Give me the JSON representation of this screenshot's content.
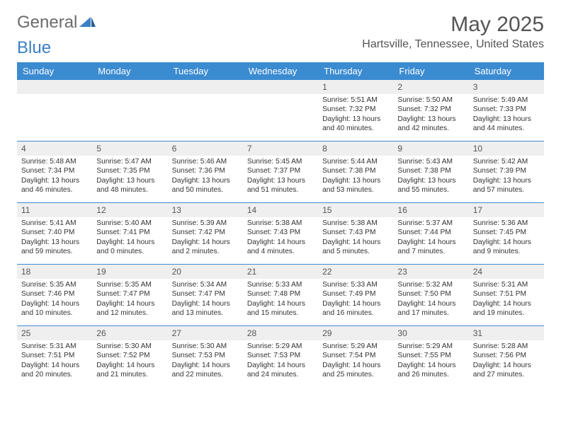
{
  "brand": {
    "part1": "General",
    "part2": "Blue"
  },
  "title": "May 2025",
  "subtitle": "Hartsville, Tennessee, United States",
  "colors": {
    "header_bg": "#3b8bd1",
    "header_text": "#ffffff",
    "daynum_bg": "#efefef",
    "border": "#3b8bd1",
    "text": "#333333",
    "brand_gray": "#6b6b6b",
    "brand_blue": "#3b7fc4"
  },
  "dayNames": [
    "Sunday",
    "Monday",
    "Tuesday",
    "Wednesday",
    "Thursday",
    "Friday",
    "Saturday"
  ],
  "weeks": [
    [
      {
        "num": "",
        "lines": []
      },
      {
        "num": "",
        "lines": []
      },
      {
        "num": "",
        "lines": []
      },
      {
        "num": "",
        "lines": []
      },
      {
        "num": "1",
        "lines": [
          "Sunrise: 5:51 AM",
          "Sunset: 7:32 PM",
          "Daylight: 13 hours",
          "and 40 minutes."
        ]
      },
      {
        "num": "2",
        "lines": [
          "Sunrise: 5:50 AM",
          "Sunset: 7:32 PM",
          "Daylight: 13 hours",
          "and 42 minutes."
        ]
      },
      {
        "num": "3",
        "lines": [
          "Sunrise: 5:49 AM",
          "Sunset: 7:33 PM",
          "Daylight: 13 hours",
          "and 44 minutes."
        ]
      }
    ],
    [
      {
        "num": "4",
        "lines": [
          "Sunrise: 5:48 AM",
          "Sunset: 7:34 PM",
          "Daylight: 13 hours",
          "and 46 minutes."
        ]
      },
      {
        "num": "5",
        "lines": [
          "Sunrise: 5:47 AM",
          "Sunset: 7:35 PM",
          "Daylight: 13 hours",
          "and 48 minutes."
        ]
      },
      {
        "num": "6",
        "lines": [
          "Sunrise: 5:46 AM",
          "Sunset: 7:36 PM",
          "Daylight: 13 hours",
          "and 50 minutes."
        ]
      },
      {
        "num": "7",
        "lines": [
          "Sunrise: 5:45 AM",
          "Sunset: 7:37 PM",
          "Daylight: 13 hours",
          "and 51 minutes."
        ]
      },
      {
        "num": "8",
        "lines": [
          "Sunrise: 5:44 AM",
          "Sunset: 7:38 PM",
          "Daylight: 13 hours",
          "and 53 minutes."
        ]
      },
      {
        "num": "9",
        "lines": [
          "Sunrise: 5:43 AM",
          "Sunset: 7:38 PM",
          "Daylight: 13 hours",
          "and 55 minutes."
        ]
      },
      {
        "num": "10",
        "lines": [
          "Sunrise: 5:42 AM",
          "Sunset: 7:39 PM",
          "Daylight: 13 hours",
          "and 57 minutes."
        ]
      }
    ],
    [
      {
        "num": "11",
        "lines": [
          "Sunrise: 5:41 AM",
          "Sunset: 7:40 PM",
          "Daylight: 13 hours",
          "and 59 minutes."
        ]
      },
      {
        "num": "12",
        "lines": [
          "Sunrise: 5:40 AM",
          "Sunset: 7:41 PM",
          "Daylight: 14 hours",
          "and 0 minutes."
        ]
      },
      {
        "num": "13",
        "lines": [
          "Sunrise: 5:39 AM",
          "Sunset: 7:42 PM",
          "Daylight: 14 hours",
          "and 2 minutes."
        ]
      },
      {
        "num": "14",
        "lines": [
          "Sunrise: 5:38 AM",
          "Sunset: 7:43 PM",
          "Daylight: 14 hours",
          "and 4 minutes."
        ]
      },
      {
        "num": "15",
        "lines": [
          "Sunrise: 5:38 AM",
          "Sunset: 7:43 PM",
          "Daylight: 14 hours",
          "and 5 minutes."
        ]
      },
      {
        "num": "16",
        "lines": [
          "Sunrise: 5:37 AM",
          "Sunset: 7:44 PM",
          "Daylight: 14 hours",
          "and 7 minutes."
        ]
      },
      {
        "num": "17",
        "lines": [
          "Sunrise: 5:36 AM",
          "Sunset: 7:45 PM",
          "Daylight: 14 hours",
          "and 9 minutes."
        ]
      }
    ],
    [
      {
        "num": "18",
        "lines": [
          "Sunrise: 5:35 AM",
          "Sunset: 7:46 PM",
          "Daylight: 14 hours",
          "and 10 minutes."
        ]
      },
      {
        "num": "19",
        "lines": [
          "Sunrise: 5:35 AM",
          "Sunset: 7:47 PM",
          "Daylight: 14 hours",
          "and 12 minutes."
        ]
      },
      {
        "num": "20",
        "lines": [
          "Sunrise: 5:34 AM",
          "Sunset: 7:47 PM",
          "Daylight: 14 hours",
          "and 13 minutes."
        ]
      },
      {
        "num": "21",
        "lines": [
          "Sunrise: 5:33 AM",
          "Sunset: 7:48 PM",
          "Daylight: 14 hours",
          "and 15 minutes."
        ]
      },
      {
        "num": "22",
        "lines": [
          "Sunrise: 5:33 AM",
          "Sunset: 7:49 PM",
          "Daylight: 14 hours",
          "and 16 minutes."
        ]
      },
      {
        "num": "23",
        "lines": [
          "Sunrise: 5:32 AM",
          "Sunset: 7:50 PM",
          "Daylight: 14 hours",
          "and 17 minutes."
        ]
      },
      {
        "num": "24",
        "lines": [
          "Sunrise: 5:31 AM",
          "Sunset: 7:51 PM",
          "Daylight: 14 hours",
          "and 19 minutes."
        ]
      }
    ],
    [
      {
        "num": "25",
        "lines": [
          "Sunrise: 5:31 AM",
          "Sunset: 7:51 PM",
          "Daylight: 14 hours",
          "and 20 minutes."
        ]
      },
      {
        "num": "26",
        "lines": [
          "Sunrise: 5:30 AM",
          "Sunset: 7:52 PM",
          "Daylight: 14 hours",
          "and 21 minutes."
        ]
      },
      {
        "num": "27",
        "lines": [
          "Sunrise: 5:30 AM",
          "Sunset: 7:53 PM",
          "Daylight: 14 hours",
          "and 22 minutes."
        ]
      },
      {
        "num": "28",
        "lines": [
          "Sunrise: 5:29 AM",
          "Sunset: 7:53 PM",
          "Daylight: 14 hours",
          "and 24 minutes."
        ]
      },
      {
        "num": "29",
        "lines": [
          "Sunrise: 5:29 AM",
          "Sunset: 7:54 PM",
          "Daylight: 14 hours",
          "and 25 minutes."
        ]
      },
      {
        "num": "30",
        "lines": [
          "Sunrise: 5:29 AM",
          "Sunset: 7:55 PM",
          "Daylight: 14 hours",
          "and 26 minutes."
        ]
      },
      {
        "num": "31",
        "lines": [
          "Sunrise: 5:28 AM",
          "Sunset: 7:56 PM",
          "Daylight: 14 hours",
          "and 27 minutes."
        ]
      }
    ]
  ]
}
